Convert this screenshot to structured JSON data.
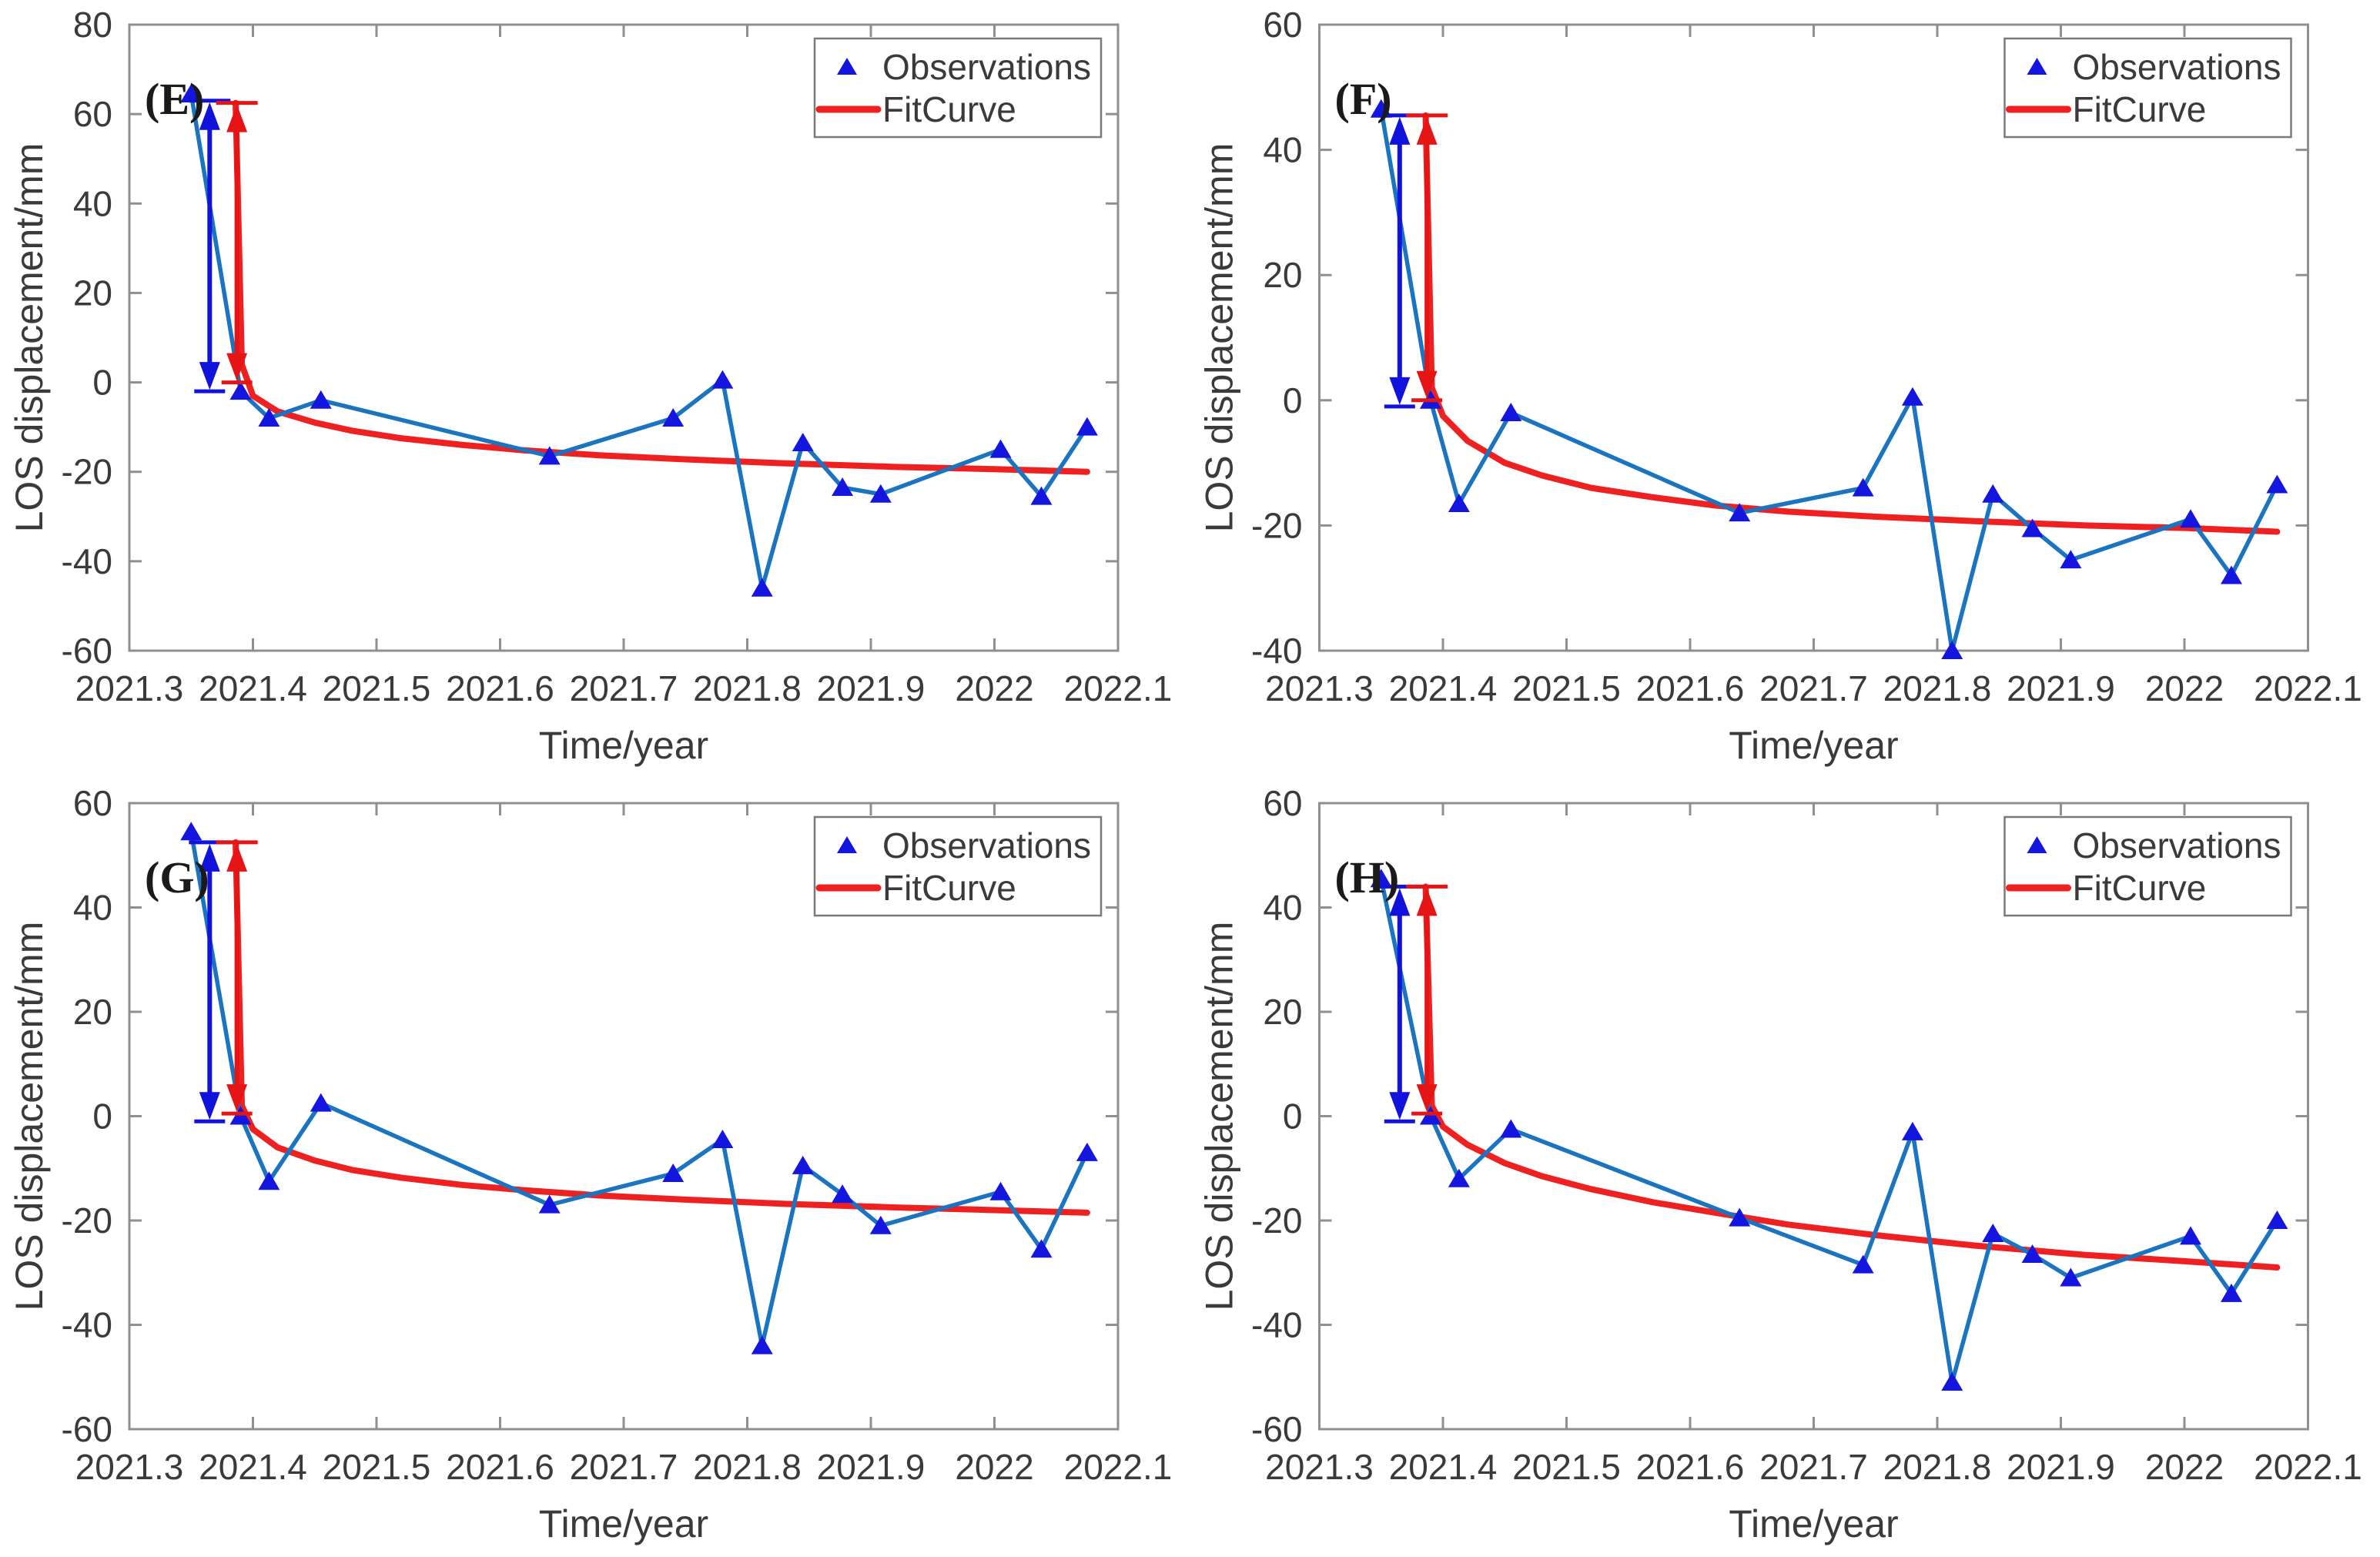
{
  "figure": {
    "background": "#ffffff",
    "axis_color": "#8f8f8f",
    "label_color": "#3a3a3a",
    "panel_letter_color": "#1a1a1a",
    "obs_marker_color": "#1515e0",
    "obs_line_color": "#1a74c0",
    "fit_color": "#ee2020",
    "arrow_blue_color": "#1212dd",
    "arrow_red_color": "#e61515",
    "legend_border_color": "#7a7a7a"
  },
  "chart_data": [
    {
      "type": "line",
      "panel_label": "(E)",
      "xlabel": "Time/year",
      "ylabel": "LOS displacement/mm",
      "xlim": [
        2021.3,
        2022.1
      ],
      "ylim": [
        -60,
        80
      ],
      "xticks": [
        2021.3,
        2021.4,
        2021.5,
        2021.6,
        2021.7,
        2021.8,
        2021.9,
        2022,
        2022.1
      ],
      "xtick_labels": [
        "2021.3",
        "2021.4",
        "2021.5",
        "2021.6",
        "2021.7",
        "2021.8",
        "2021.9",
        "2022",
        "2022.1"
      ],
      "yticks": [
        -60,
        -40,
        -20,
        0,
        20,
        40,
        60,
        80
      ],
      "legend": [
        "Observations",
        "FitCurve"
      ],
      "grid": false,
      "legend_position": "top-right",
      "series": [
        {
          "name": "Observations",
          "x": [
            2021.35,
            2021.39,
            2021.413,
            2021.455,
            2021.64,
            2021.74,
            2021.78,
            2021.812,
            2021.845,
            2021.877,
            2021.908,
            2022.005,
            2022.038,
            2022.075
          ],
          "y": [
            64.5,
            -2,
            -8,
            -4,
            -16.5,
            -8,
            0.5,
            -46,
            -13.5,
            -23.5,
            -25,
            -15,
            -25.5,
            -10
          ]
        },
        {
          "name": "FitCurve",
          "x": [
            2021.386,
            2021.391,
            2021.4,
            2021.42,
            2021.45,
            2021.48,
            2021.52,
            2021.57,
            2021.62,
            2021.68,
            2021.75,
            2021.83,
            2021.92,
            2022.0,
            2022.075
          ],
          "y": [
            62.5,
            4,
            -3,
            -6.5,
            -9,
            -10.8,
            -12.5,
            -14,
            -15.2,
            -16.3,
            -17.2,
            -18.1,
            -18.9,
            -19.4,
            -20
          ]
        }
      ],
      "arrows": [
        {
          "color": "blue",
          "x": 2021.365,
          "y1": -2,
          "y2": 63
        },
        {
          "color": "red",
          "x": 2021.387,
          "y1": 0,
          "y2": 62.5
        }
      ]
    },
    {
      "type": "line",
      "panel_label": "(F)",
      "xlabel": "Time/year",
      "ylabel": "LOS displacement/mm",
      "xlim": [
        2021.3,
        2022.1
      ],
      "ylim": [
        -40,
        60
      ],
      "xticks": [
        2021.3,
        2021.4,
        2021.5,
        2021.6,
        2021.7,
        2021.8,
        2021.9,
        2022,
        2022.1
      ],
      "xtick_labels": [
        "2021.3",
        "2021.4",
        "2021.5",
        "2021.6",
        "2021.7",
        "2021.8",
        "2021.9",
        "2022",
        "2022.1"
      ],
      "yticks": [
        -40,
        -20,
        0,
        20,
        40,
        60
      ],
      "legend": [
        "Observations",
        "FitCurve"
      ],
      "grid": false,
      "legend_position": "top-right",
      "series": [
        {
          "name": "Observations",
          "x": [
            2021.35,
            2021.39,
            2021.413,
            2021.455,
            2021.64,
            2021.74,
            2021.78,
            2021.812,
            2021.845,
            2021.877,
            2021.908,
            2022.005,
            2022.038,
            2022.075
          ],
          "y": [
            46.5,
            0,
            -16.5,
            -2,
            -18,
            -14,
            0.5,
            -40,
            -15,
            -20.5,
            -25.5,
            -19,
            -28,
            -13.5
          ]
        },
        {
          "name": "FitCurve",
          "x": [
            2021.386,
            2021.391,
            2021.4,
            2021.42,
            2021.45,
            2021.48,
            2021.52,
            2021.57,
            2021.62,
            2021.68,
            2021.75,
            2021.83,
            2021.92,
            2022.0,
            2022.075
          ],
          "y": [
            45.5,
            2,
            -2.5,
            -6.5,
            -10,
            -12,
            -14,
            -15.5,
            -16.8,
            -17.8,
            -18.6,
            -19.3,
            -20,
            -20.4,
            -21
          ]
        }
      ],
      "arrows": [
        {
          "color": "blue",
          "x": 2021.365,
          "y1": -1,
          "y2": 45.5
        },
        {
          "color": "red",
          "x": 2021.387,
          "y1": 0,
          "y2": 45.5
        }
      ]
    },
    {
      "type": "line",
      "panel_label": "(G)",
      "xlabel": "Time/year",
      "ylabel": "LOS displacement/mm",
      "xlim": [
        2021.3,
        2022.1
      ],
      "ylim": [
        -60,
        60
      ],
      "xticks": [
        2021.3,
        2021.4,
        2021.5,
        2021.6,
        2021.7,
        2021.8,
        2021.9,
        2022,
        2022.1
      ],
      "xtick_labels": [
        "2021.3",
        "2021.4",
        "2021.5",
        "2021.6",
        "2021.7",
        "2021.8",
        "2021.9",
        "2022",
        "2022.1"
      ],
      "yticks": [
        -60,
        -40,
        -20,
        0,
        20,
        40,
        60
      ],
      "legend": [
        "Observations",
        "FitCurve"
      ],
      "grid": false,
      "legend_position": "top-right",
      "series": [
        {
          "name": "Observations",
          "x": [
            2021.35,
            2021.39,
            2021.413,
            2021.455,
            2021.64,
            2021.74,
            2021.78,
            2021.812,
            2021.845,
            2021.877,
            2021.908,
            2022.005,
            2022.038,
            2022.075
          ],
          "y": [
            54.5,
            0,
            -12.5,
            2.5,
            -17,
            -11,
            -4.5,
            -44,
            -9.5,
            -15,
            -21,
            -14.5,
            -25.5,
            -7
          ]
        },
        {
          "name": "FitCurve",
          "x": [
            2021.386,
            2021.391,
            2021.4,
            2021.42,
            2021.45,
            2021.48,
            2021.52,
            2021.57,
            2021.62,
            2021.68,
            2021.75,
            2021.83,
            2021.92,
            2022.0,
            2022.075
          ],
          "y": [
            52.5,
            2,
            -2.5,
            -6,
            -8.5,
            -10.3,
            -11.8,
            -13.2,
            -14.2,
            -15.2,
            -16,
            -16.8,
            -17.5,
            -18,
            -18.5
          ]
        }
      ],
      "arrows": [
        {
          "color": "blue",
          "x": 2021.365,
          "y1": -1,
          "y2": 52.5
        },
        {
          "color": "red",
          "x": 2021.387,
          "y1": 0.5,
          "y2": 52.5
        }
      ]
    },
    {
      "type": "line",
      "panel_label": "(H)",
      "xlabel": "Time/year",
      "ylabel": "LOS displacement/mm",
      "xlim": [
        2021.3,
        2022.1
      ],
      "ylim": [
        -60,
        60
      ],
      "xticks": [
        2021.3,
        2021.4,
        2021.5,
        2021.6,
        2021.7,
        2021.8,
        2021.9,
        2022,
        2022.1
      ],
      "xtick_labels": [
        "2021.3",
        "2021.4",
        "2021.5",
        "2021.6",
        "2021.7",
        "2021.8",
        "2021.9",
        "2022",
        "2022.1"
      ],
      "yticks": [
        -60,
        -40,
        -20,
        0,
        20,
        40,
        60
      ],
      "legend": [
        "Observations",
        "FitCurve"
      ],
      "grid": false,
      "legend_position": "top-right",
      "series": [
        {
          "name": "Observations",
          "x": [
            2021.35,
            2021.39,
            2021.413,
            2021.455,
            2021.64,
            2021.74,
            2021.78,
            2021.812,
            2021.845,
            2021.877,
            2021.908,
            2022.005,
            2022.038,
            2022.075
          ],
          "y": [
            45.5,
            0,
            -12,
            -2.5,
            -19.5,
            -28.5,
            -3,
            -51,
            -22.5,
            -26.5,
            -31,
            -23,
            -34,
            -20
          ]
        },
        {
          "name": "FitCurve",
          "x": [
            2021.386,
            2021.391,
            2021.4,
            2021.42,
            2021.45,
            2021.48,
            2021.52,
            2021.57,
            2021.62,
            2021.68,
            2021.75,
            2021.83,
            2021.92,
            2022.0,
            2022.075
          ],
          "y": [
            44,
            2,
            -2,
            -5.5,
            -9,
            -11.5,
            -14,
            -16.5,
            -18.5,
            -20.8,
            -22.8,
            -24.8,
            -26.6,
            -27.8,
            -29
          ]
        }
      ],
      "arrows": [
        {
          "color": "blue",
          "x": 2021.365,
          "y1": -1,
          "y2": 44
        },
        {
          "color": "red",
          "x": 2021.387,
          "y1": 0.5,
          "y2": 44
        }
      ]
    }
  ]
}
